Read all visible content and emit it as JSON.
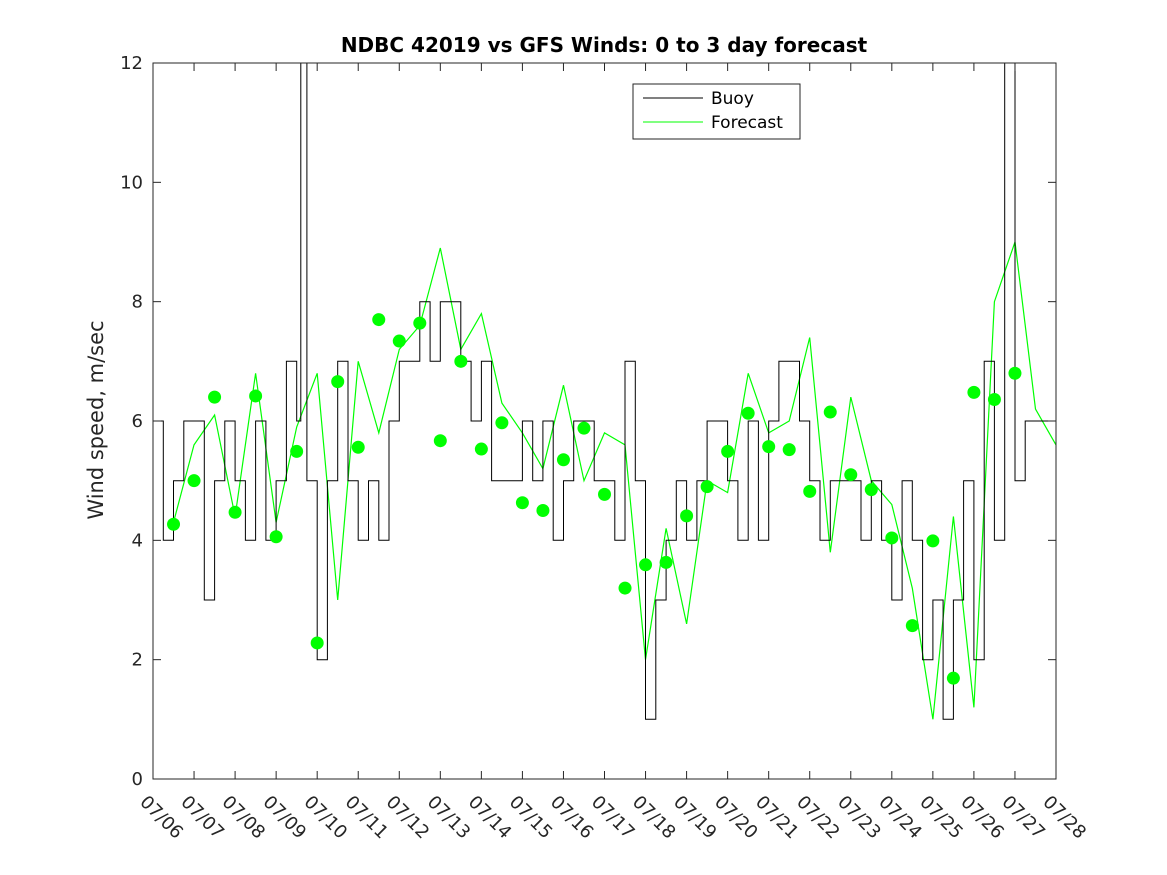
{
  "chart_data": {
    "type": "line",
    "title": "NDBC 42019 vs GFS Winds: 0 to 3 day forecast",
    "xlabel": "",
    "ylabel": "Wind speed, m/sec",
    "xlim": [
      0,
      22
    ],
    "ylim": [
      0,
      12
    ],
    "yticks": [
      0,
      2,
      4,
      6,
      8,
      10,
      12
    ],
    "xtick_labels": [
      "07/06",
      "07/07",
      "07/08",
      "07/09",
      "07/10",
      "07/11",
      "07/12",
      "07/13",
      "07/14",
      "07/15",
      "07/16",
      "07/17",
      "07/18",
      "07/19",
      "07/20",
      "07/21",
      "07/22",
      "07/23",
      "07/24",
      "07/25",
      "07/26",
      "07/27",
      "07/28"
    ],
    "x_units": "days since 07/06",
    "legend": {
      "position": "top-right-inside",
      "entries": [
        "Buoy",
        "Forecast"
      ]
    },
    "colors": {
      "buoy": "#000000",
      "forecast": "#00ff00",
      "markers": "#00ff00"
    },
    "series": [
      {
        "name": "Buoy",
        "x": [
          0,
          0.25,
          0.5,
          0.75,
          1,
          1.25,
          1.5,
          1.75,
          2,
          2.25,
          2.5,
          2.75,
          3,
          3.25,
          3.5,
          3.6,
          3.75,
          4,
          4.25,
          4.5,
          4.75,
          5,
          5.25,
          5.5,
          5.75,
          6,
          6.25,
          6.5,
          6.75,
          7,
          7.25,
          7.5,
          7.75,
          8,
          8.25,
          8.5,
          8.75,
          9,
          9.25,
          9.5,
          9.75,
          10,
          10.25,
          10.5,
          10.75,
          11,
          11.25,
          11.5,
          11.75,
          12,
          12.25,
          12.5,
          12.75,
          13,
          13.25,
          13.5,
          13.75,
          14,
          14.25,
          14.5,
          14.75,
          15,
          15.25,
          15.5,
          15.75,
          16,
          16.25,
          16.5,
          16.75,
          17,
          17.25,
          17.5,
          17.75,
          18,
          18.25,
          18.5,
          18.75,
          19,
          19.25,
          19.5,
          19.75,
          20,
          20.25,
          20.5,
          20.75,
          21,
          21.25,
          21.5,
          21.75,
          22
        ],
        "y": [
          6,
          4,
          5,
          6,
          6,
          3,
          5,
          6,
          5,
          4,
          6,
          4,
          5,
          7,
          6,
          12,
          5,
          2,
          5,
          7,
          5,
          4,
          5,
          4,
          6,
          7,
          7,
          8,
          7,
          8,
          8,
          7,
          6,
          7,
          5,
          5,
          5,
          6,
          5,
          6,
          4,
          5,
          6,
          6,
          5,
          5,
          4,
          7,
          5,
          1,
          3,
          4,
          5,
          4,
          5,
          6,
          6,
          5,
          4,
          6,
          4,
          6,
          7,
          7,
          6,
          5,
          4,
          5,
          5,
          5,
          4,
          5,
          4,
          3,
          5,
          4,
          2,
          3,
          1,
          3,
          5,
          2,
          7,
          4,
          12,
          5,
          6,
          6,
          6,
          6
        ]
      },
      {
        "name": "Forecast",
        "x": [
          0.5,
          1,
          1.5,
          2,
          2.5,
          3,
          3.5,
          4,
          4.5,
          5,
          5.5,
          6,
          6.5,
          7,
          7.5,
          8,
          8.5,
          9,
          9.5,
          10,
          10.5,
          11,
          11.5,
          12,
          12.5,
          13,
          13.5,
          14,
          14.5,
          15,
          15.5,
          16,
          16.5,
          17,
          17.5,
          18,
          18.5,
          19,
          19.5,
          20,
          20.5,
          21,
          21.5,
          22
        ],
        "y": [
          4.3,
          5.6,
          6.1,
          4.4,
          6.8,
          4.3,
          5.9,
          6.8,
          3.0,
          7.0,
          5.8,
          7.2,
          7.6,
          8.9,
          7.2,
          7.8,
          6.3,
          5.8,
          5.2,
          6.6,
          5.0,
          5.8,
          5.6,
          2.0,
          4.2,
          2.6,
          5.0,
          4.8,
          6.8,
          5.8,
          6.0,
          7.4,
          3.8,
          6.4,
          5.0,
          4.6,
          3.2,
          1.0,
          4.4,
          1.2,
          8.0,
          9.0,
          6.2,
          5.6
        ]
      },
      {
        "name": "",
        "marker": "o",
        "x": [
          0.5,
          1,
          1.5,
          2,
          2.5,
          3,
          3.5,
          4,
          4.5,
          5,
          5.5,
          6,
          6.5,
          7,
          7.5,
          8,
          8.5,
          9,
          9.5,
          10,
          10.5,
          11,
          11.5,
          12,
          12.5,
          13,
          13.5,
          14,
          14.5,
          15,
          15.5,
          16,
          16.5,
          17,
          17.5,
          18,
          18.5,
          19,
          19.5,
          20,
          20.5,
          21
        ],
        "y": [
          4.27,
          5.0,
          6.4,
          4.47,
          6.42,
          4.06,
          5.49,
          2.28,
          6.66,
          5.56,
          7.7,
          7.34,
          7.64,
          5.67,
          7.0,
          5.53,
          5.97,
          4.63,
          4.5,
          5.35,
          5.88,
          4.77,
          3.2,
          3.59,
          3.63,
          4.41,
          4.9,
          5.49,
          6.13,
          5.57,
          5.52,
          4.82,
          6.15,
          5.1,
          4.85,
          4.04,
          2.57,
          3.99,
          1.69,
          6.48,
          6.36,
          6.8
        ]
      }
    ]
  }
}
